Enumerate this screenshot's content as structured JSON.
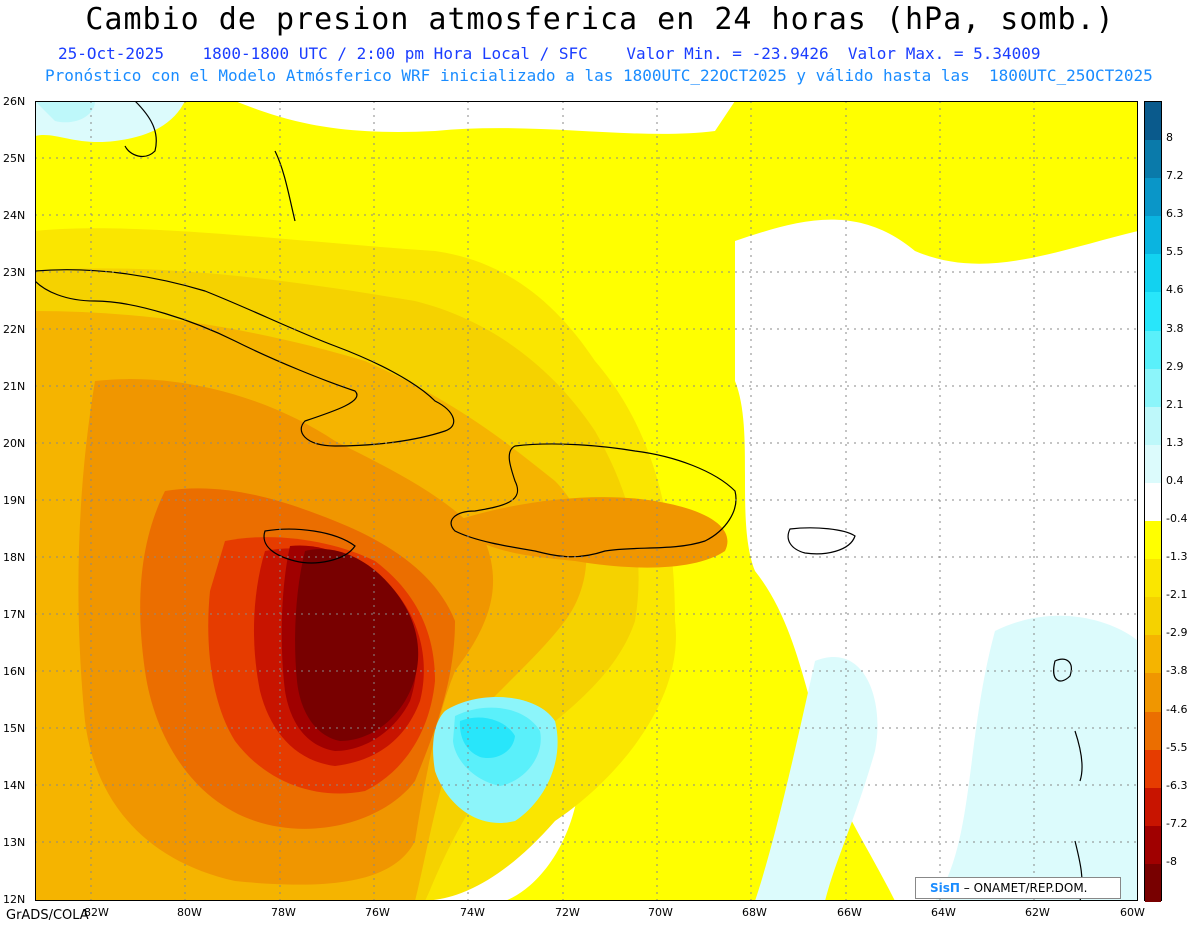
{
  "title": "Cambio de presion atmosferica en 24 horas (hPa, somb.)",
  "subtitle_line1": "25-Oct-2025    1800-1800 UTC / 2:00 pm Hora Local / SFC    Valor Min. = -23.9426  Valor Max. = 5.34009",
  "subtitle_line2": "Pronóstico con el Modelo Atmósferico WRF inicializado a las 1800UTC_22OCT2025 y válido hasta las  1800UTC_25OCT2025",
  "lat_labels": [
    "26N",
    "25N",
    "24N",
    "23N",
    "22N",
    "21N",
    "20N",
    "19N",
    "18N",
    "17N",
    "16N",
    "15N",
    "14N",
    "13N",
    "12N"
  ],
  "lon_labels": [
    "82W",
    "80W",
    "78W",
    "76W",
    "74W",
    "72W",
    "70W",
    "68W",
    "66W",
    "64W",
    "62W",
    "60W"
  ],
  "colorbar_labels": [
    "8",
    "7.2",
    "6.3",
    "5.5",
    "4.6",
    "3.8",
    "2.9",
    "2.1",
    "1.3",
    "0.4",
    "-0.4",
    "-1.3",
    "-2.1",
    "-2.9",
    "-3.8",
    "-4.6",
    "-5.5",
    "-6.3",
    "-7.2",
    "-8"
  ],
  "colorbar_colors": [
    "#0a5a8c",
    "#0a7aaa",
    "#0a96c8",
    "#0ab4e0",
    "#12d2f0",
    "#28e6fa",
    "#5af0fa",
    "#8cf5fa",
    "#bef8fa",
    "#dcfbfc",
    "#ffffff",
    "#ffff00",
    "#fae600",
    "#f5d200",
    "#f5b400",
    "#f09600",
    "#eb6e00",
    "#e63c00",
    "#c81400",
    "#a00000",
    "#780000"
  ],
  "footer_left": "GrADS/COLA",
  "credit_logo": "SisΠ",
  "credit_text": "– ONAMET/REP.DOM."
}
